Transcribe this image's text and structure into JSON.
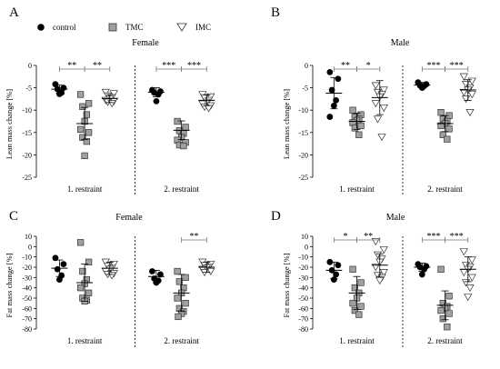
{
  "legend": {
    "items": [
      {
        "label": "control",
        "marker": "circle",
        "fill": "#000000"
      },
      {
        "label": "TMC",
        "marker": "square",
        "fill": "#a0a0a0"
      },
      {
        "label": "IMC",
        "marker": "triangle-down",
        "fill": "#ffffff"
      }
    ]
  },
  "colors": {
    "control": "#000000",
    "tmc": "#a0a0a0",
    "imc": "#ffffff",
    "sig": "#777777"
  },
  "chart_data": [
    {
      "type": "scatter",
      "panel_letter": "A",
      "title": "Female",
      "ylabel": "Lean mass change [%]",
      "ylim": [
        -25,
        0
      ],
      "yticks": [
        0,
        -5,
        -10,
        -15,
        -20,
        -25
      ],
      "group_labels": [
        "1. restraint",
        "2. restraint"
      ],
      "groups": [
        {
          "label": "1. restraint",
          "series": [
            {
              "name": "control",
              "values": [
                -4.2,
                -5.0,
                -5.3,
                -6.1,
                -6.4
              ],
              "mean": -5.3,
              "sd": 0.9
            },
            {
              "name": "TMC",
              "values": [
                -6.5,
                -8.5,
                -9.2,
                -11.0,
                -12.5,
                -14.3,
                -15.0,
                -16.1,
                -17.0,
                -20.2
              ],
              "mean": -13.0,
              "sd": 3.6
            },
            {
              "name": "IMC",
              "values": [
                -6.0,
                -6.3,
                -6.8,
                -7.2,
                -7.5,
                -7.8,
                -8.0,
                -8.2,
                -8.5
              ],
              "mean": -7.4,
              "sd": 0.9
            }
          ],
          "sig": [
            [
              "control",
              "TMC",
              "**"
            ],
            [
              "TMC",
              "IMC",
              "**"
            ]
          ]
        },
        {
          "label": "2. restraint",
          "series": [
            {
              "name": "control",
              "values": [
                -5.5,
                -5.8,
                -6.1,
                -6.5,
                -8.0
              ],
              "mean": -6.0,
              "sd": 1.0
            },
            {
              "name": "TMC",
              "values": [
                -12.5,
                -13.8,
                -14.6,
                -15.2,
                -16.1,
                -16.7,
                -17.2,
                -17.8,
                -18.0
              ],
              "mean": -14.5,
              "sd": 2.1
            },
            {
              "name": "IMC",
              "values": [
                -6.5,
                -7.0,
                -7.2,
                -7.8,
                -8.2,
                -8.6,
                -9.0,
                -9.3,
                -9.6
              ],
              "mean": -7.8,
              "sd": 1.2
            }
          ],
          "sig": [
            [
              "control",
              "TMC",
              "***"
            ],
            [
              "TMC",
              "IMC",
              "***"
            ]
          ]
        }
      ]
    },
    {
      "type": "scatter",
      "panel_letter": "B",
      "title": "Male",
      "ylabel": "Lean mass change [%]",
      "ylim": [
        -25,
        0
      ],
      "yticks": [
        0,
        -5,
        -10,
        -15,
        -20,
        -25
      ],
      "group_labels": [
        "1. restraint",
        "2. restraint"
      ],
      "groups": [
        {
          "label": "1. restraint",
          "series": [
            {
              "name": "control",
              "values": [
                -1.5,
                -3.0,
                -5.5,
                -7.8,
                -9.0,
                -11.5
              ],
              "mean": -6.2,
              "sd": 3.5
            },
            {
              "name": "TMC",
              "values": [
                -10.0,
                -11.0,
                -11.5,
                -12.0,
                -12.3,
                -12.8,
                -13.5,
                -14.0,
                -15.5
              ],
              "mean": -12.5,
              "sd": 1.8
            },
            {
              "name": "IMC",
              "values": [
                -4.5,
                -5.5,
                -6.0,
                -6.5,
                -7.0,
                -8.5,
                -9.5,
                -12.0,
                -16.0
              ],
              "mean": -7.2,
              "sd": 3.8
            }
          ],
          "sig": [
            [
              "control",
              "TMC",
              "**"
            ],
            [
              "TMC",
              "IMC",
              "*"
            ]
          ]
        },
        {
          "label": "2. restraint",
          "series": [
            {
              "name": "control",
              "values": [
                -3.8,
                -4.2,
                -4.5,
                -4.6,
                -5.0
              ],
              "mean": -4.4,
              "sd": 0.6
            },
            {
              "name": "TMC",
              "values": [
                -10.5,
                -11.2,
                -12.0,
                -12.5,
                -13.0,
                -13.5,
                -14.2,
                -15.5,
                -16.5
              ],
              "mean": -13.0,
              "sd": 1.8
            },
            {
              "name": "IMC",
              "values": [
                -2.5,
                -3.5,
                -4.2,
                -5.0,
                -5.5,
                -6.0,
                -6.5,
                -7.5,
                -10.5
              ],
              "mean": -5.5,
              "sd": 2.3
            }
          ],
          "sig": [
            [
              "control",
              "TMC",
              "***"
            ],
            [
              "TMC",
              "IMC",
              "***"
            ]
          ]
        }
      ]
    },
    {
      "type": "scatter",
      "panel_letter": "C",
      "title": "Female",
      "ylabel": "Fat mass change [%]",
      "ylim": [
        -80,
        10
      ],
      "yticks": [
        10,
        0,
        -10,
        -20,
        -30,
        -40,
        -50,
        -60,
        -70,
        -80
      ],
      "group_labels": [
        "1. restraint",
        "2. restraint"
      ],
      "groups": [
        {
          "label": "1. restraint",
          "series": [
            {
              "name": "control",
              "values": [
                -11.0,
                -17.0,
                -22.0,
                -28.0,
                -32.0
              ],
              "mean": -21.0,
              "sd": 8.0
            },
            {
              "name": "TMC",
              "values": [
                4.0,
                -15.0,
                -24.0,
                -32.0,
                -36.0,
                -40.0,
                -45.0,
                -50.0,
                -52.0,
                -53.0
              ],
              "mean": -35.0,
              "sd": 18.0
            },
            {
              "name": "IMC",
              "values": [
                -15.0,
                -17.0,
                -19.0,
                -21.0,
                -22.0,
                -24.0,
                -26.0,
                -27.0,
                -28.0
              ],
              "mean": -21.0,
              "sd": 6.0
            }
          ],
          "sig": []
        },
        {
          "label": "2. restraint",
          "series": [
            {
              "name": "control",
              "values": [
                -24.0,
                -27.0,
                -31.0,
                -33.0,
                -35.0
              ],
              "mean": -29.0,
              "sd": 6.0
            },
            {
              "name": "TMC",
              "values": [
                -24.0,
                -30.0,
                -34.0,
                -40.0,
                -45.0,
                -50.0,
                -55.0,
                -60.0,
                -63.0,
                -65.0,
                -68.0
              ],
              "mean": -45.0,
              "sd": 18.0
            },
            {
              "name": "IMC",
              "values": [
                -15.0,
                -17.0,
                -18.0,
                -20.0,
                -21.0,
                -22.0,
                -24.0,
                -25.0
              ],
              "mean": -20.0,
              "sd": 5.0
            }
          ],
          "sig": [
            [
              "TMC",
              "IMC",
              "**"
            ]
          ]
        }
      ]
    },
    {
      "type": "scatter",
      "panel_letter": "D",
      "title": "Male",
      "ylabel": "Fat mass change [%]",
      "ylim": [
        -80,
        10
      ],
      "yticks": [
        10,
        0,
        -10,
        -20,
        -30,
        -40,
        -50,
        -60,
        -70,
        -80
      ],
      "group_labels": [
        "1. restraint",
        "2. restraint"
      ],
      "groups": [
        {
          "label": "1. restraint",
          "series": [
            {
              "name": "control",
              "values": [
                -15.0,
                -18.0,
                -23.0,
                -27.0,
                -32.0
              ],
              "mean": -23.0,
              "sd": 8.0
            },
            {
              "name": "TMC",
              "values": [
                -22.0,
                -35.0,
                -40.0,
                -45.0,
                -50.0,
                -55.0,
                -58.0,
                -62.0,
                -66.0
              ],
              "mean": -45.0,
              "sd": 16.0
            },
            {
              "name": "IMC",
              "values": [
                5.0,
                -3.0,
                -8.0,
                -12.0,
                -15.0,
                -20.0,
                -25.0,
                -28.0,
                -30.0,
                -33.0
              ],
              "mean": -18.0,
              "sd": 11.0
            }
          ],
          "sig": [
            [
              "control",
              "TMC",
              "*"
            ],
            [
              "TMC",
              "IMC",
              "**"
            ]
          ]
        },
        {
          "label": "2. restraint",
          "series": [
            {
              "name": "control",
              "values": [
                -17.0,
                -19.0,
                -20.0,
                -22.0,
                -27.0
              ],
              "mean": -20.0,
              "sd": 4.0
            },
            {
              "name": "TMC",
              "values": [
                -22.0,
                -48.0,
                -55.0,
                -58.0,
                -60.0,
                -62.0,
                -65.0,
                -70.0,
                -78.0
              ],
              "mean": -57.0,
              "sd": 14.0
            },
            {
              "name": "IMC",
              "values": [
                -5.0,
                -13.0,
                -18.0,
                -20.0,
                -22.0,
                -25.0,
                -30.0,
                -35.0,
                -40.0,
                -49.0
              ],
              "mean": -22.0,
              "sd": 12.0
            }
          ],
          "sig": [
            [
              "control",
              "TMC",
              "***"
            ],
            [
              "TMC",
              "IMC",
              "***"
            ]
          ]
        }
      ]
    }
  ]
}
